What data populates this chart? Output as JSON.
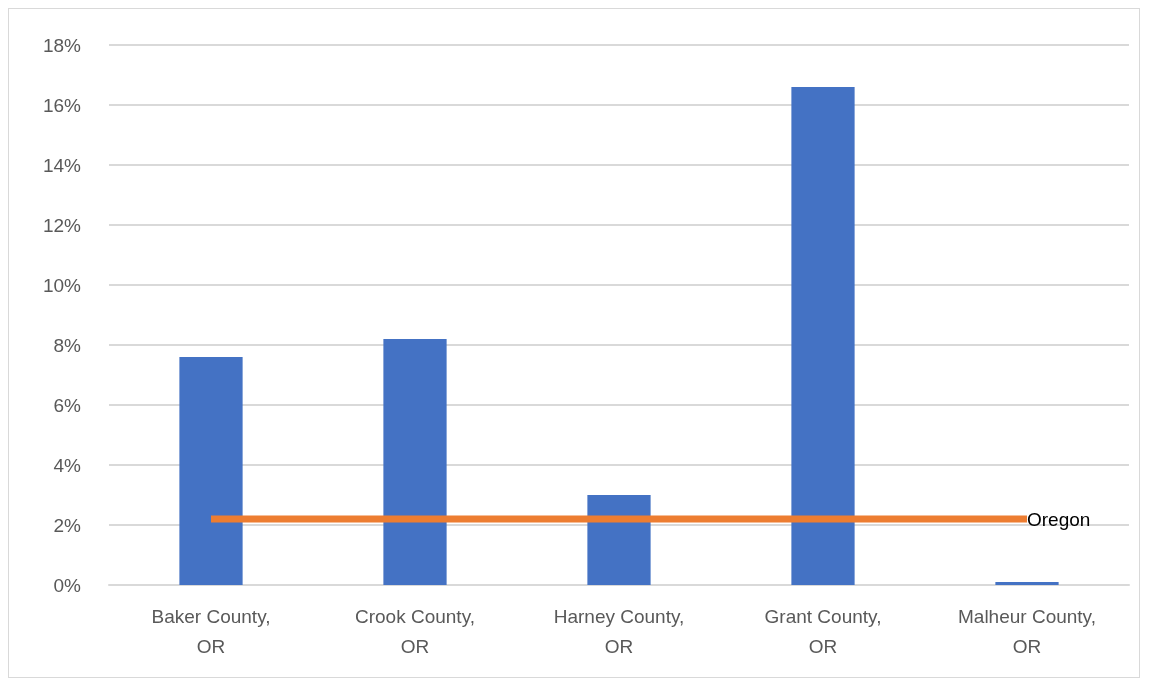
{
  "chart_data": {
    "type": "bar",
    "categories": [
      "Baker County,\nOR",
      "Crook County,\nOR",
      "Harney County,\nOR",
      "Grant County,\nOR",
      "Malheur County,\nOR"
    ],
    "series": [
      {
        "color": "#4472c4",
        "values": [
          7.6,
          8.2,
          3.0,
          16.6,
          0.1
        ]
      },
      {
        "type": "line",
        "name": "Oregon",
        "color": "#ed7d31",
        "values": [
          2.2,
          2.2,
          2.2,
          2.2,
          2.2
        ]
      }
    ],
    "ylim": [
      0,
      18
    ],
    "yticks": [
      {
        "value": 0,
        "label": "0%"
      },
      {
        "value": 2,
        "label": "2%"
      },
      {
        "value": 4,
        "label": "4%"
      },
      {
        "value": 6,
        "label": "6%"
      },
      {
        "value": 8,
        "label": "8%"
      },
      {
        "value": 10,
        "label": "10%"
      },
      {
        "value": 12,
        "label": "12%"
      },
      {
        "value": 14,
        "label": "14%"
      },
      {
        "value": 16,
        "label": "16%"
      },
      {
        "value": 18,
        "label": "18%"
      }
    ],
    "grid": "y",
    "legend": false,
    "marker": "none",
    "line_style": "solid"
  }
}
